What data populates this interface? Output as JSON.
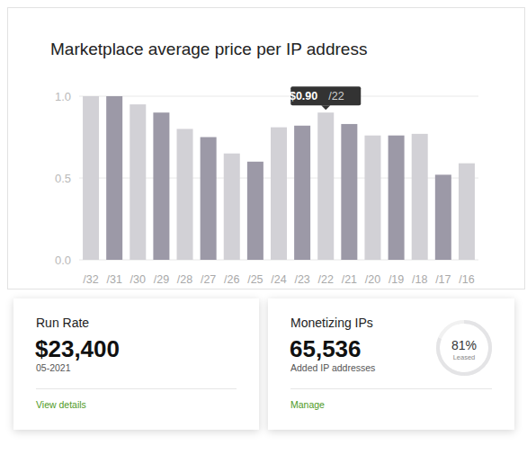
{
  "chart_data": {
    "type": "bar",
    "title": "Marketplace average price per IP address",
    "categories": [
      "/32",
      "/31",
      "/30",
      "/29",
      "/28",
      "/27",
      "/26",
      "/25",
      "/24",
      "/23",
      "/22",
      "/21",
      "/20",
      "/19",
      "/18",
      "/17",
      "/16"
    ],
    "values": [
      1.0,
      1.0,
      0.95,
      0.9,
      0.8,
      0.75,
      0.65,
      0.6,
      0.81,
      0.82,
      0.9,
      0.83,
      0.76,
      0.76,
      0.77,
      0.52,
      0.59
    ],
    "colors": [
      "#d2d1d6",
      "#9c99a7",
      "#d2d1d6",
      "#9c99a7",
      "#d2d1d6",
      "#9c99a7",
      "#d2d1d6",
      "#9c99a7",
      "#d2d1d6",
      "#9c99a7",
      "#d2d1d6",
      "#9c99a7",
      "#d2d1d6",
      "#9c99a7",
      "#d2d1d6",
      "#9c99a7",
      "#d2d1d6"
    ],
    "ylim": [
      0,
      1
    ],
    "yticks": [
      {
        "value": 0,
        "label": "0.0"
      },
      {
        "value": 0.5,
        "label": "0.5"
      },
      {
        "value": 1,
        "label": "1.0"
      }
    ],
    "grid": true,
    "annotation": {
      "category": "/22",
      "label": "$0.90"
    }
  },
  "cards": [
    {
      "title": "Run Rate",
      "value": "$23,400",
      "subtitle": "05-2021",
      "link": "View details"
    },
    {
      "title": "Monetizing IPs",
      "value": "65,536",
      "subtitle": "Added IP addresses",
      "link": "Manage",
      "gauge": {
        "value": 81,
        "label": "81%",
        "caption": "Leased"
      }
    }
  ]
}
